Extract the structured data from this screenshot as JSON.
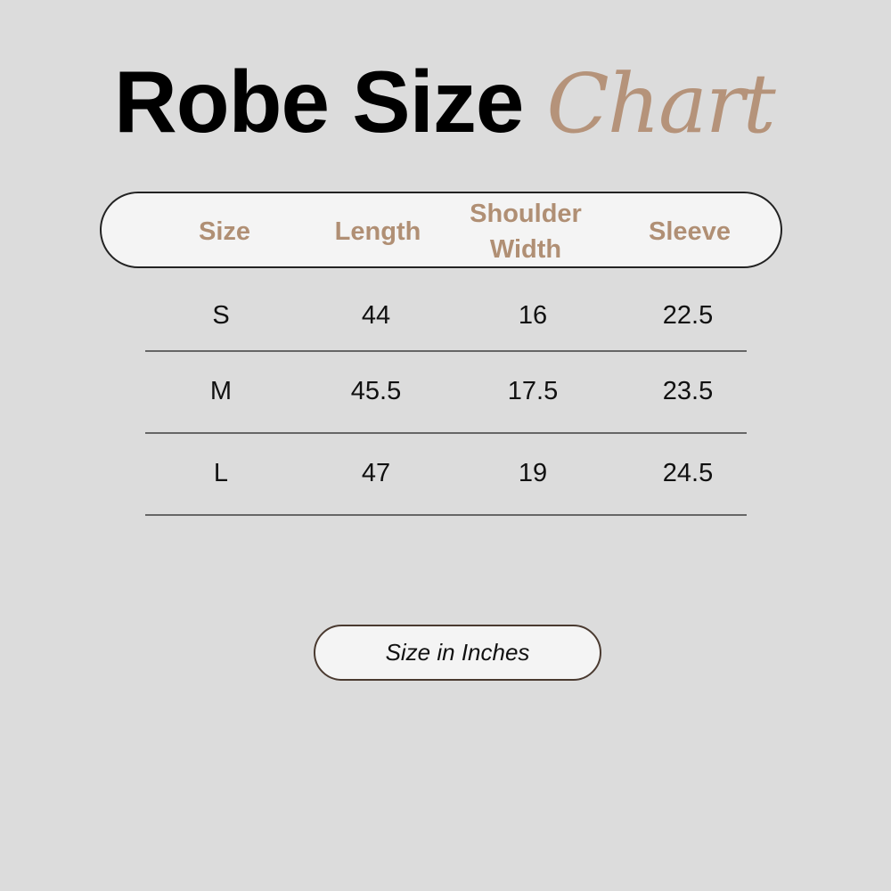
{
  "title": {
    "main": "Robe Size",
    "accent": "Chart"
  },
  "colors": {
    "background": "#dcdcdc",
    "accent": "#b5937a",
    "header_text": "#b08f74",
    "header_fill": "#f4f4f4"
  },
  "chart_data": {
    "type": "table",
    "columns": [
      "Size",
      "Length",
      "Shoulder Width",
      "Sleeve"
    ],
    "rows": [
      [
        "S",
        "44",
        "16",
        "22.5"
      ],
      [
        "M",
        "45.5",
        "17.5",
        "23.5"
      ],
      [
        "L",
        "47",
        "19",
        "24.5"
      ]
    ]
  },
  "note": "Size in Inches"
}
